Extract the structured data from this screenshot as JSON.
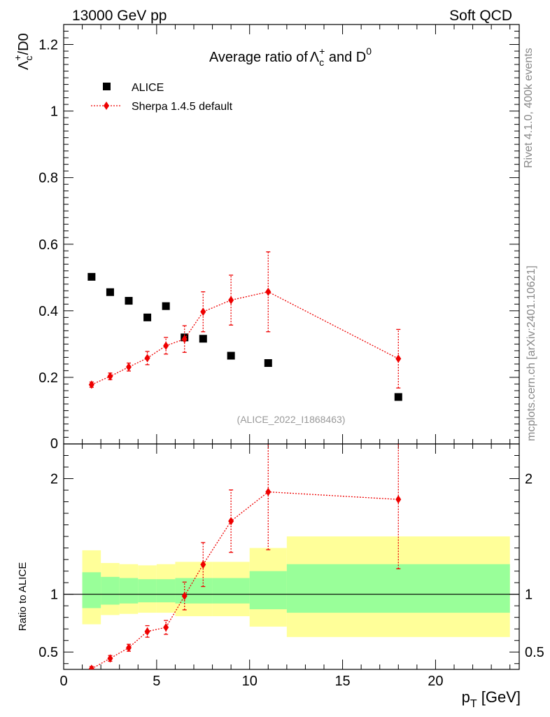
{
  "header": {
    "energy": "13000 GeV pp",
    "process": "Soft QCD"
  },
  "side_labels": {
    "rivet": "Rivet 4.1.0,  400k events",
    "mcplots": "mcplots.cern.ch [arXiv:2401.10621]"
  },
  "chart_data": [
    {
      "type": "scatter",
      "title_prefix": "Average ratio of",
      "title_particle": "Λ",
      "title_sub": "c",
      "title_sup": "+",
      "title_mid": " and D",
      "title_sup2": "0",
      "ylabel_main": "Λ",
      "ylabel_sub": "c",
      "ylabel_sup": "+",
      "ylabel_rest": "/D0",
      "ylim": [
        0,
        1.26
      ],
      "yticks": [
        {
          "v": 0.2,
          "label": "0.2"
        },
        {
          "v": 0.4,
          "label": "0.4"
        },
        {
          "v": 0.6,
          "label": "0.6"
        },
        {
          "v": 0.8,
          "label": "0.8"
        },
        {
          "v": 1.0,
          "label": "1"
        },
        {
          "v": 1.2,
          "label": "1.2"
        }
      ],
      "y_zero_label": "0",
      "analysis_label": "(ALICE_2022_I1868463)",
      "series": [
        {
          "name": "ALICE",
          "color": "#000000",
          "marker": "square",
          "x": [
            1.5,
            2.5,
            3.5,
            4.5,
            5.5,
            6.5,
            7.5,
            9,
            11,
            18
          ],
          "y": [
            0.502,
            0.456,
            0.43,
            0.38,
            0.414,
            0.32,
            0.316,
            0.265,
            0.243,
            0.141
          ]
        },
        {
          "name": "Sherpa 1.4.5 default",
          "color": "#ee0000",
          "marker": "diamond",
          "x": [
            1.5,
            2.5,
            3.5,
            4.5,
            5.5,
            6.5,
            7.5,
            9,
            11,
            18
          ],
          "y": [
            0.178,
            0.203,
            0.231,
            0.258,
            0.295,
            0.315,
            0.397,
            0.432,
            0.457,
            0.256
          ],
          "yerr": [
            0.008,
            0.01,
            0.012,
            0.02,
            0.025,
            0.04,
            0.06,
            0.075,
            0.12,
            0.088
          ]
        }
      ]
    },
    {
      "type": "scatter",
      "ylabel": "Ratio to ALICE",
      "xlabel_main": "p",
      "xlabel_sub": "T",
      "xlabel_rest": " [GeV]",
      "xlim": [
        0,
        24.5
      ],
      "ylim": [
        0.35,
        2.3
      ],
      "xticks": [
        {
          "v": 0,
          "label": "0"
        },
        {
          "v": 5,
          "label": "5"
        },
        {
          "v": 10,
          "label": "10"
        },
        {
          "v": 15,
          "label": "15"
        },
        {
          "v": 20,
          "label": "20"
        }
      ],
      "yticks": [
        {
          "v": 0.5,
          "label": "0.5"
        },
        {
          "v": 1,
          "label": "1"
        },
        {
          "v": 2,
          "label": "2"
        }
      ],
      "bands": [
        {
          "x0": 1,
          "x1": 2,
          "stat": [
            0.88,
            1.19
          ],
          "total": [
            0.74,
            1.38
          ]
        },
        {
          "x0": 2,
          "x1": 3,
          "stat": [
            0.91,
            1.15
          ],
          "total": [
            0.82,
            1.27
          ]
        },
        {
          "x0": 3,
          "x1": 4,
          "stat": [
            0.92,
            1.14
          ],
          "total": [
            0.83,
            1.26
          ]
        },
        {
          "x0": 4,
          "x1": 5,
          "stat": [
            0.93,
            1.13
          ],
          "total": [
            0.84,
            1.25
          ]
        },
        {
          "x0": 5,
          "x1": 6,
          "stat": [
            0.93,
            1.13
          ],
          "total": [
            0.84,
            1.26
          ]
        },
        {
          "x0": 6,
          "x1": 8,
          "stat": [
            0.92,
            1.14
          ],
          "total": [
            0.81,
            1.28
          ]
        },
        {
          "x0": 8,
          "x1": 10,
          "stat": [
            0.92,
            1.14
          ],
          "total": [
            0.81,
            1.28
          ]
        },
        {
          "x0": 10,
          "x1": 12,
          "stat": [
            0.87,
            1.2
          ],
          "total": [
            0.72,
            1.4
          ]
        },
        {
          "x0": 12,
          "x1": 24,
          "stat": [
            0.84,
            1.26
          ],
          "total": [
            0.63,
            1.5
          ]
        }
      ],
      "series": [
        {
          "name": "Sherpa 1.4.5 default",
          "color": "#ee0000",
          "x": [
            1.5,
            2.5,
            3.5,
            4.5,
            5.5,
            6.5,
            7.5,
            9,
            11,
            18
          ],
          "y": [
            0.355,
            0.445,
            0.537,
            0.678,
            0.713,
            0.985,
            1.257,
            1.632,
            1.885,
            1.82
          ],
          "yerr_lo": [
            0.02,
            0.025,
            0.03,
            0.05,
            0.06,
            0.12,
            0.19,
            0.27,
            0.5,
            0.6
          ],
          "yerr_hi": [
            0.02,
            0.025,
            0.03,
            0.05,
            0.06,
            0.12,
            0.19,
            0.27,
            0.5,
            0.6
          ]
        }
      ],
      "stat_color": "#99ff99",
      "total_color": "#ffff99"
    }
  ]
}
